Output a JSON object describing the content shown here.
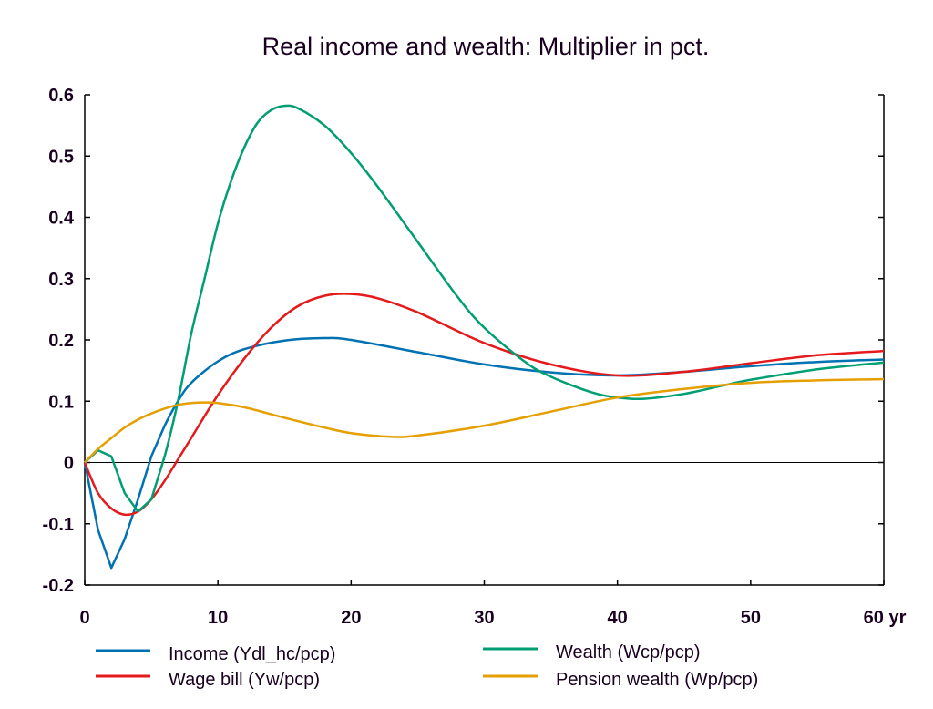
{
  "chart_data": {
    "type": "line",
    "title": "Real income and wealth: Multiplier in pct.",
    "xlabel": "",
    "ylabel": "",
    "xlim": [
      0,
      60
    ],
    "ylim": [
      -0.2,
      0.6
    ],
    "x_ticks": [
      "0",
      "10",
      "20",
      "30",
      "40",
      "50",
      "60 yr"
    ],
    "x_tick_values": [
      0,
      10,
      20,
      30,
      40,
      50,
      60
    ],
    "y_ticks": [
      "0.6",
      "0.5",
      "0.4",
      "0.3",
      "0.2",
      "0.1",
      "0",
      "-0.1",
      "-0.2"
    ],
    "y_tick_values": [
      0.6,
      0.5,
      0.4,
      0.3,
      0.2,
      0.1,
      0,
      -0.1,
      -0.2
    ],
    "grid": false,
    "zero_line": true,
    "legend_position": "bottom",
    "series": [
      {
        "name": "Income (Ydl_hc/pcp)",
        "color": "#0072b2",
        "x": [
          0,
          1,
          2,
          3,
          4,
          5,
          6,
          7,
          8,
          10,
          12,
          15,
          18,
          20,
          25,
          30,
          35,
          40,
          45,
          50,
          55,
          60
        ],
        "values": [
          0,
          -0.11,
          -0.172,
          -0.125,
          -0.06,
          0.01,
          0.06,
          0.1,
          0.13,
          0.165,
          0.185,
          0.199,
          0.203,
          0.2,
          0.18,
          0.16,
          0.147,
          0.142,
          0.148,
          0.157,
          0.164,
          0.168
        ]
      },
      {
        "name": "Wage bill (Yw/pcp)",
        "color": "#e41a1c",
        "x": [
          0,
          1,
          2,
          3,
          4,
          5,
          6,
          7,
          8,
          10,
          12,
          14,
          16,
          18,
          20,
          22,
          25,
          30,
          35,
          40,
          45,
          50,
          55,
          60
        ],
        "values": [
          0,
          -0.05,
          -0.075,
          -0.085,
          -0.08,
          -0.06,
          -0.03,
          0.005,
          0.04,
          0.11,
          0.17,
          0.22,
          0.255,
          0.272,
          0.275,
          0.268,
          0.245,
          0.195,
          0.16,
          0.142,
          0.148,
          0.162,
          0.175,
          0.182
        ]
      },
      {
        "name": "Wealth (Wcp/pcp)",
        "color": "#009e73",
        "x": [
          0,
          1,
          2,
          3,
          4,
          5,
          6,
          7,
          8,
          9,
          10,
          11,
          12,
          13,
          14,
          15,
          16,
          18,
          20,
          22,
          25,
          28,
          30,
          33,
          35,
          38,
          40,
          42,
          45,
          48,
          50,
          55,
          60
        ],
        "values": [
          0,
          0.02,
          0.01,
          -0.05,
          -0.08,
          -0.06,
          0.01,
          0.1,
          0.21,
          0.3,
          0.39,
          0.46,
          0.515,
          0.555,
          0.575,
          0.582,
          0.578,
          0.55,
          0.505,
          0.45,
          0.36,
          0.27,
          0.22,
          0.165,
          0.14,
          0.115,
          0.106,
          0.104,
          0.112,
          0.126,
          0.135,
          0.152,
          0.163
        ]
      },
      {
        "name": "Pension wealth (Wp/pcp)",
        "color": "#e69f00",
        "x": [
          0,
          1,
          2,
          3,
          4,
          5,
          6,
          7,
          8,
          9,
          10,
          12,
          15,
          18,
          20,
          23,
          25,
          30,
          35,
          40,
          45,
          50,
          55,
          60
        ],
        "values": [
          0,
          0.022,
          0.04,
          0.057,
          0.07,
          0.08,
          0.088,
          0.094,
          0.097,
          0.098,
          0.097,
          0.09,
          0.073,
          0.057,
          0.048,
          0.042,
          0.044,
          0.06,
          0.083,
          0.106,
          0.12,
          0.13,
          0.134,
          0.136
        ]
      }
    ]
  }
}
